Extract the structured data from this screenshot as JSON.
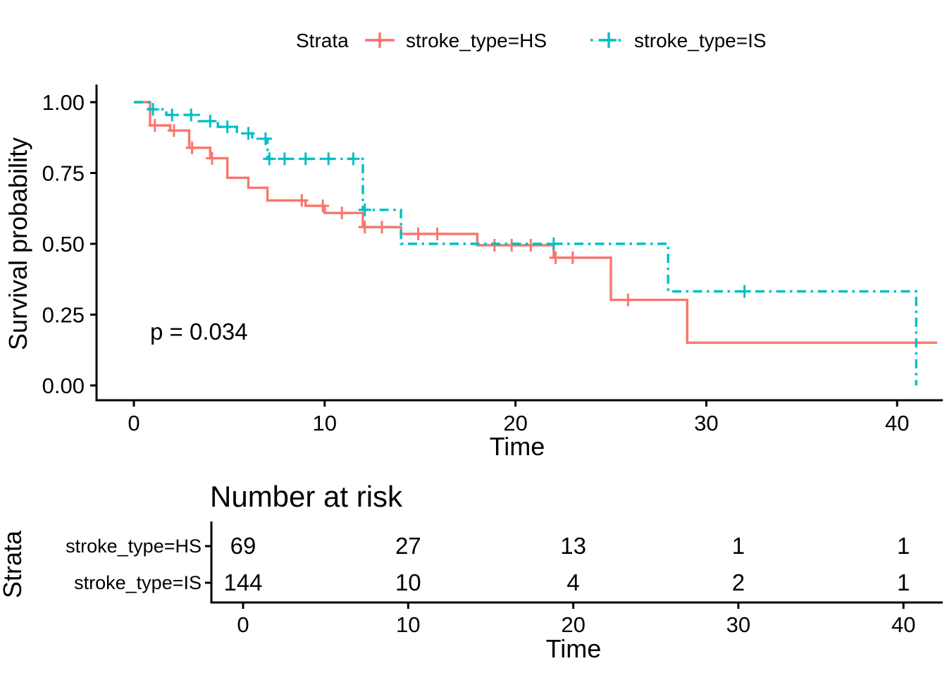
{
  "colors": {
    "hs_stroke": "#F8766D",
    "is_stroke": "#00BFC4",
    "axis": "#000000",
    "background": "#FFFFFF"
  },
  "legend": {
    "title": "Strata",
    "items": [
      {
        "label": "stroke_type=HS",
        "color": "#F8766D",
        "linestyle": "solid"
      },
      {
        "label": "stroke_type=IS",
        "color": "#00BFC4",
        "linestyle": "dashdot"
      }
    ]
  },
  "main": {
    "ylabel": "Survival probability",
    "xlabel": "Time",
    "pvalue": "p = 0.034",
    "yticks": [
      "1.00",
      "0.75",
      "0.50",
      "0.25",
      "0.00"
    ],
    "xticks": [
      "0",
      "10",
      "20",
      "30",
      "40"
    ]
  },
  "risk_table": {
    "title": "Number at risk",
    "ylabel": "Strata",
    "xlabel": "Time",
    "xticks": [
      "0",
      "10",
      "20",
      "30",
      "40"
    ],
    "rows": [
      {
        "label": "stroke_type=HS",
        "color": "#F8766D",
        "values": [
          "69",
          "27",
          "13",
          "1",
          "1"
        ]
      },
      {
        "label": "stroke_type=IS",
        "color": "#00BFC4",
        "values": [
          "144",
          "10",
          "4",
          "2",
          "1"
        ]
      }
    ]
  },
  "chart_data": {
    "type": "line",
    "subtype": "kaplan-meier-step-curves",
    "title": "",
    "xlabel": "Time",
    "ylabel": "Survival probability",
    "xlim": [
      0,
      42.2
    ],
    "ylim": [
      0,
      1
    ],
    "xticks": [
      0,
      10,
      20,
      30,
      40
    ],
    "yticks": [
      1,
      0.75,
      0.5,
      0.25,
      0
    ],
    "grid": false,
    "legend_position": "top",
    "pvalue": "p = 0.034",
    "series": [
      {
        "name": "stroke_type=HS",
        "color": "#F8766D",
        "linestyle": "solid",
        "n_at_risk_at_ticks": [
          69,
          27,
          13,
          1,
          1
        ],
        "steps": [
          [
            0,
            1.0
          ],
          [
            0.85,
            0.918
          ],
          [
            1.9,
            0.9
          ],
          [
            2.9,
            0.839
          ],
          [
            4.0,
            0.802
          ],
          [
            4.9,
            0.733
          ],
          [
            6.0,
            0.698
          ],
          [
            7.0,
            0.653
          ],
          [
            9.0,
            0.634
          ],
          [
            10.0,
            0.609
          ],
          [
            12.0,
            0.559
          ],
          [
            14.0,
            0.535
          ],
          [
            18.0,
            0.495
          ],
          [
            22.0,
            0.451
          ],
          [
            25.0,
            0.302
          ],
          [
            29.0,
            0.151
          ]
        ],
        "end_x": 42.1,
        "censors": [
          [
            1.1,
            0.918
          ],
          [
            2.1,
            0.9
          ],
          [
            3.05,
            0.839
          ],
          [
            4.1,
            0.802
          ],
          [
            8.8,
            0.653
          ],
          [
            9.9,
            0.634
          ],
          [
            10.9,
            0.609
          ],
          [
            12.1,
            0.559
          ],
          [
            13.0,
            0.559
          ],
          [
            14.9,
            0.535
          ],
          [
            15.9,
            0.535
          ],
          [
            18.9,
            0.495
          ],
          [
            19.8,
            0.495
          ],
          [
            20.8,
            0.495
          ],
          [
            22.1,
            0.451
          ],
          [
            23.0,
            0.451
          ],
          [
            25.9,
            0.302
          ]
        ]
      },
      {
        "name": "stroke_type=IS",
        "color": "#00BFC4",
        "linestyle": "dashdot",
        "n_at_risk_at_ticks": [
          144,
          10,
          4,
          2,
          1
        ],
        "steps": [
          [
            0,
            1.0
          ],
          [
            0.8,
            0.975
          ],
          [
            1.7,
            0.955
          ],
          [
            3.4,
            0.933
          ],
          [
            4.4,
            0.913
          ],
          [
            5.4,
            0.89
          ],
          [
            6.2,
            0.871
          ],
          [
            7.0,
            0.8
          ],
          [
            12.0,
            0.62
          ],
          [
            14.0,
            0.5
          ],
          [
            28.0,
            0.332
          ],
          [
            41.0,
            0.0
          ]
        ],
        "end_x": 41.0,
        "censors": [
          [
            1.0,
            0.975
          ],
          [
            2.0,
            0.955
          ],
          [
            3.0,
            0.955
          ],
          [
            4.0,
            0.933
          ],
          [
            4.9,
            0.913
          ],
          [
            6.0,
            0.89
          ],
          [
            6.9,
            0.871
          ],
          [
            7.1,
            0.8
          ],
          [
            7.9,
            0.8
          ],
          [
            9.0,
            0.8
          ],
          [
            10.2,
            0.8
          ],
          [
            11.5,
            0.8
          ],
          [
            12.1,
            0.62
          ],
          [
            22.0,
            0.5
          ],
          [
            32.0,
            0.332
          ]
        ]
      }
    ]
  }
}
